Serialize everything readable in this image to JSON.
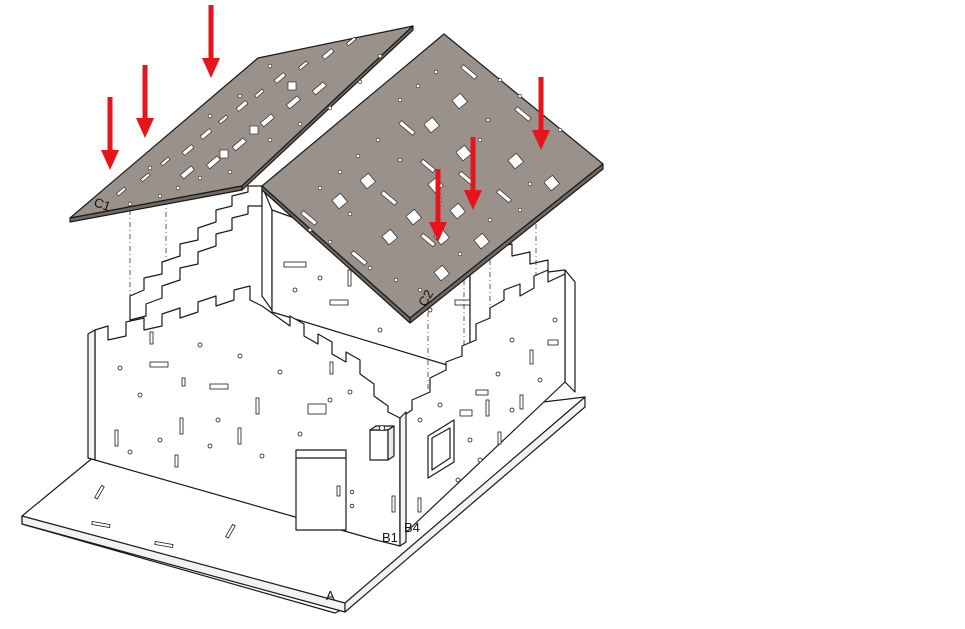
{
  "diagram": {
    "labels": {
      "base": "A",
      "front_wall": "B1",
      "side_wall": "B4",
      "roof_left": "C1",
      "roof_right": "C2"
    },
    "colors": {
      "arrow": "#e8141b",
      "roof_panel": "#9a928a",
      "wall_panel": "#ffffff",
      "outline": "#1a1a1a"
    }
  }
}
